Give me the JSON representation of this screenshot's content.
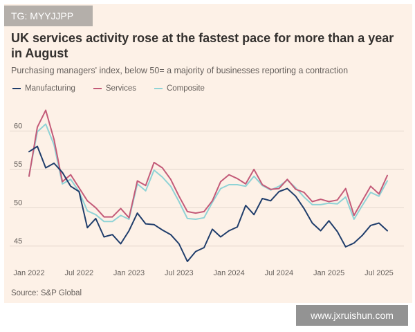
{
  "watermark_top": "TG: MYYJJPP",
  "watermark_bottom": "www.jxruishun.com",
  "source": "Source: S&P Global",
  "colors": {
    "background": "#fdf1e7",
    "manufacturing": "#1f3d6b",
    "services": "#c35a78",
    "composite": "#8fd3d6",
    "grid": "#e3d6cc"
  },
  "chart_data": {
    "type": "line",
    "title": "UK services activity rose at the fastest pace for more than a year in August",
    "subtitle": "Purchasing managers' index, below 50= a majority of businesses reporting a contraction",
    "ylim": [
      43,
      64
    ],
    "yticks": [
      45,
      50,
      55,
      60
    ],
    "xtick_labels": [
      "Jan 2022",
      "Jul 2022",
      "Jan 2023",
      "Jul 2023",
      "Jan 2024",
      "Jul 2024",
      "Jan 2025",
      "Jul 2025"
    ],
    "xtick_index": [
      0,
      6,
      12,
      18,
      24,
      30,
      36,
      42
    ],
    "x_count": 45,
    "grid": true,
    "legend_position": "top-left",
    "series": [
      {
        "name": "Manufacturing",
        "key": "manufacturing",
        "values": [
          57.3,
          58.0,
          55.2,
          55.8,
          54.6,
          52.8,
          52.1,
          47.4,
          48.6,
          46.2,
          46.5,
          45.3,
          47.0,
          49.3,
          47.9,
          47.8,
          47.1,
          46.5,
          45.3,
          43.0,
          44.3,
          44.8,
          47.2,
          46.2,
          47.0,
          47.5,
          50.3,
          49.1,
          51.2,
          50.9,
          52.1,
          52.5,
          51.5,
          49.9,
          48.0,
          47.0,
          48.3,
          46.9,
          44.9,
          45.4,
          46.4,
          47.7,
          48.0,
          47.0,
          null
        ],
        "line_width": 2
      },
      {
        "name": "Services",
        "key": "services",
        "values": [
          54.1,
          60.5,
          62.7,
          58.9,
          53.4,
          54.3,
          52.6,
          50.9,
          50.0,
          48.8,
          48.8,
          49.9,
          48.7,
          53.5,
          52.9,
          55.9,
          55.2,
          53.7,
          51.5,
          49.5,
          49.3,
          49.5,
          50.9,
          53.4,
          54.3,
          53.8,
          53.1,
          55.0,
          53.0,
          52.4,
          52.5,
          53.7,
          52.4,
          52.0,
          50.8,
          51.1,
          50.8,
          51.0,
          52.5,
          49.0,
          50.9,
          52.8,
          51.8,
          54.2,
          null
        ],
        "line_width": 2
      },
      {
        "name": "Composite",
        "key": "composite",
        "values": [
          54.2,
          59.9,
          60.9,
          58.2,
          53.1,
          53.7,
          52.1,
          49.6,
          49.1,
          48.2,
          48.2,
          49.0,
          48.5,
          53.1,
          52.2,
          54.9,
          54.0,
          52.8,
          50.8,
          48.6,
          48.5,
          48.7,
          50.7,
          52.5,
          53.0,
          53.0,
          52.8,
          54.1,
          52.9,
          52.3,
          52.8,
          53.6,
          52.6,
          51.4,
          50.4,
          50.4,
          50.6,
          50.5,
          51.4,
          48.5,
          50.3,
          52.0,
          51.5,
          53.5,
          null
        ],
        "line_width": 2
      }
    ]
  }
}
